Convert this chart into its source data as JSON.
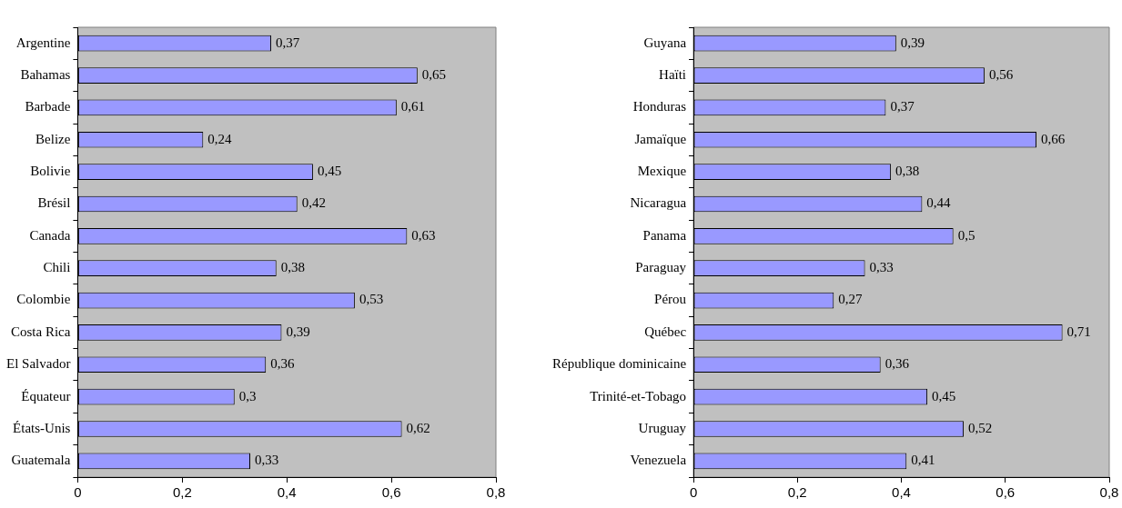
{
  "chart_data": [
    {
      "type": "bar",
      "orientation": "horizontal",
      "categories": [
        "Argentine",
        "Bahamas",
        "Barbade",
        "Belize",
        "Bolivie",
        "Brésil",
        "Canada",
        "Chili",
        "Colombie",
        "Costa Rica",
        "El Salvador",
        "Équateur",
        "États-Unis",
        "Guatemala"
      ],
      "values": [
        0.37,
        0.65,
        0.61,
        0.24,
        0.45,
        0.42,
        0.63,
        0.38,
        0.53,
        0.39,
        0.36,
        0.3,
        0.62,
        0.33
      ],
      "value_labels": [
        "0,37",
        "0,65",
        "0,61",
        "0,24",
        "0,45",
        "0,42",
        "0,63",
        "0,38",
        "0,53",
        "0,39",
        "0,36",
        "0,3",
        "0,62",
        "0,33"
      ],
      "color": "#9999ff",
      "xlim": [
        0,
        0.8
      ],
      "xticks": [
        0,
        {
          "value": 0.2,
          "label": "0,2"
        },
        {
          "value": 0.4,
          "label": "0,4"
        },
        {
          "value": 0.6,
          "label": "0,6"
        },
        {
          "value": 0.8,
          "label": "0,8"
        }
      ],
      "grid": false,
      "legend": false
    },
    {
      "type": "bar",
      "orientation": "horizontal",
      "categories": [
        "Guyana",
        "Haïti",
        "Honduras",
        "Jamaïque",
        "Mexique",
        "Nicaragua",
        "Panama",
        "Paraguay",
        "Pérou",
        "Québec",
        "République dominicaine",
        "Trinité-et-Tobago",
        "Uruguay",
        "Venezuela"
      ],
      "values": [
        0.39,
        0.56,
        0.37,
        0.66,
        0.38,
        0.44,
        0.5,
        0.33,
        0.27,
        0.71,
        0.36,
        0.45,
        0.52,
        0.41
      ],
      "value_labels": [
        "0,39",
        "0,56",
        "0,37",
        "0,66",
        "0,38",
        "0,44",
        "0,5",
        "0,33",
        "0,27",
        "0,71",
        "0,36",
        "0,45",
        "0,52",
        "0,41"
      ],
      "color": "#9999ff",
      "xlim": [
        0,
        0.8
      ],
      "xticks": [
        0,
        {
          "value": 0.2,
          "label": "0,2"
        },
        {
          "value": 0.4,
          "label": "0,4"
        },
        {
          "value": 0.6,
          "label": "0,6"
        },
        {
          "value": 0.8,
          "label": "0,8"
        }
      ],
      "grid": false,
      "legend": false
    }
  ]
}
